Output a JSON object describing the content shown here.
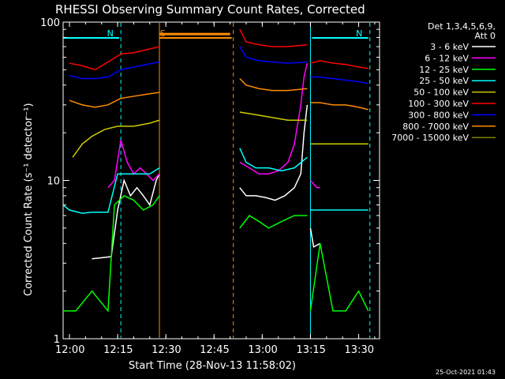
{
  "chart_data": {
    "type": "line",
    "title": "RHESSI Observing Summary Count Rates, Corrected",
    "xlabel": "Start Time (28-Nov-13 11:58:02)",
    "ylabel": "Corrected Count Rate (s⁻¹ detector⁻¹)",
    "y_scale": "log",
    "ylim": [
      1,
      100
    ],
    "xlim": [
      "11:58:02",
      "13:36:30"
    ],
    "x_ticks": [
      "12:00",
      "12:15",
      "12:30",
      "12:45",
      "13:00",
      "13:15",
      "13:30"
    ],
    "y_ticks": [
      "1",
      "10",
      "100"
    ],
    "legend": {
      "placement": "right",
      "header": [
        "Det 1,3,4,5,6,9,",
        "Att 0"
      ],
      "entries": [
        {
          "label": "3 - 6 keV",
          "color": "#ffffff"
        },
        {
          "label": "6 - 12 keV",
          "color": "#ff00ff"
        },
        {
          "label": "12 - 25 keV",
          "color": "#00ff00"
        },
        {
          "label": "25 - 50 keV",
          "color": "#00ffff"
        },
        {
          "label": "50 - 100 keV",
          "color": "#cccc00"
        },
        {
          "label": "100 - 300 keV",
          "color": "#ff0000"
        },
        {
          "label": "300 - 800 keV",
          "color": "#0000ff"
        },
        {
          "label": "800 - 7000 keV",
          "color": "#ff8c00"
        },
        {
          "label": "7000 - 15000 keV",
          "color": "#808000"
        }
      ]
    },
    "flags": [
      {
        "label": "N",
        "color": "#00ffff",
        "start": "11:58:02",
        "end": "12:15:30"
      },
      {
        "label": "N",
        "color": "#00ffff",
        "start": "13:15:30",
        "end": "13:33:00"
      },
      {
        "label": "S",
        "color": "#ff8c00",
        "start": "12:28:00",
        "end": "12:50:30"
      }
    ],
    "vlines": [
      {
        "time": "12:16:00",
        "color": "#00ffff",
        "style": "dashed"
      },
      {
        "time": "12:28:00",
        "color": "#ff8c00",
        "style": "solid"
      },
      {
        "time": "12:51:00",
        "color": "#ff8c00",
        "style": "dashed"
      },
      {
        "time": "13:15:00",
        "color": "#00ffff",
        "style": "solid"
      },
      {
        "time": "13:33:30",
        "color": "#00ffff",
        "style": "dashed"
      }
    ],
    "series": [
      {
        "name": "3 - 6 keV",
        "color": "#ffffff",
        "segments": [
          {
            "x": [
              "12:07",
              "12:13",
              "12:15",
              "12:17",
              "12:19",
              "12:21",
              "12:23",
              "12:25",
              "12:27",
              "12:28"
            ],
            "y": [
              3.2,
              3.3,
              6.5,
              10,
              8,
              9,
              8,
              7,
              10,
              11
            ]
          },
          {
            "x": [
              "12:53",
              "12:55",
              "12:58",
              "13:01",
              "13:04",
              "13:07",
              "13:10",
              "13:12",
              "13:13",
              "13:14"
            ],
            "y": [
              9,
              8,
              8,
              7.8,
              7.5,
              8,
              9,
              11,
              20,
              30
            ]
          },
          {
            "x": [
              "13:15",
              "13:16",
              "13:18"
            ],
            "y": [
              5,
              3.8,
              4
            ]
          }
        ]
      },
      {
        "name": "6 - 12 keV",
        "color": "#ff00ff",
        "segments": [
          {
            "x": [
              "12:12",
              "12:14",
              "12:16",
              "12:18",
              "12:20",
              "12:22",
              "12:24",
              "12:26",
              "12:28"
            ],
            "y": [
              9,
              10,
              18,
              13,
              11,
              12,
              11,
              10,
              11
            ]
          },
          {
            "x": [
              "12:53",
              "12:56",
              "12:59",
              "13:02",
              "13:05",
              "13:08",
              "13:10",
              "13:12",
              "13:13",
              "13:14"
            ],
            "y": [
              13,
              12,
              11,
              11,
              11.5,
              13,
              17,
              30,
              45,
              55
            ]
          },
          {
            "x": [
              "13:15",
              "13:17",
              "13:18"
            ],
            "y": [
              10,
              9,
              9
            ]
          }
        ]
      },
      {
        "name": "12 - 25 keV",
        "color": "#00ff00",
        "segments": [
          {
            "x": [
              "11:58",
              "12:02",
              "12:07",
              "12:12",
              "12:14",
              "12:17",
              "12:20",
              "12:23",
              "12:26",
              "12:28"
            ],
            "y": [
              1.5,
              1.5,
              2,
              1.5,
              7,
              8,
              7.5,
              6.5,
              7,
              8
            ]
          },
          {
            "x": [
              "12:53",
              "12:56",
              "12:59",
              "13:02",
              "13:06",
              "13:10",
              "13:14"
            ],
            "y": [
              5,
              6,
              5.5,
              5,
              5.5,
              6,
              6
            ]
          },
          {
            "x": [
              "13:15",
              "13:18",
              "13:22",
              "13:26",
              "13:30",
              "13:33"
            ],
            "y": [
              1.5,
              4,
              1.5,
              1.5,
              2,
              1.5
            ]
          }
        ]
      },
      {
        "name": "25 - 50 keV",
        "color": "#00ffff",
        "segments": [
          {
            "x": [
              "11:58",
              "12:00",
              "12:04",
              "12:07",
              "12:12",
              "12:15",
              "12:20",
              "12:25",
              "12:28"
            ],
            "y": [
              7,
              6.5,
              6.2,
              6.3,
              6.3,
              11,
              11,
              11,
              12
            ]
          },
          {
            "x": [
              "12:53",
              "12:55",
              "12:58",
              "13:02",
              "13:06",
              "13:10",
              "13:14"
            ],
            "y": [
              16,
              13,
              12,
              12,
              11.5,
              12,
              14
            ]
          },
          {
            "x": [
              "13:15",
              "13:18",
              "13:22",
              "13:26",
              "13:30",
              "13:33"
            ],
            "y": [
              6.5,
              6.5,
              6.5,
              6.5,
              6.5,
              6.5
            ]
          }
        ]
      },
      {
        "name": "50 - 100 keV",
        "color": "#cccc00",
        "segments": [
          {
            "x": [
              "12:01",
              "12:04",
              "12:07",
              "12:11",
              "12:15",
              "12:20",
              "12:25",
              "12:28"
            ],
            "y": [
              14,
              17,
              19,
              21,
              22,
              22,
              23,
              24
            ]
          },
          {
            "x": [
              "12:53",
              "12:58",
              "13:03",
              "13:08",
              "13:14"
            ],
            "y": [
              27,
              26,
              25,
              24,
              24
            ]
          },
          {
            "x": [
              "13:15",
              "13:18",
              "13:22",
              "13:26",
              "13:30",
              "13:33"
            ],
            "y": [
              17,
              17,
              17,
              17,
              17,
              17
            ]
          }
        ]
      },
      {
        "name": "100 - 300 keV",
        "color": "#ff0000",
        "segments": [
          {
            "x": [
              "12:00",
              "12:04",
              "12:08",
              "12:12",
              "12:16",
              "12:20",
              "12:24",
              "12:28"
            ],
            "y": [
              55,
              53,
              50,
              56,
              63,
              64,
              67,
              70
            ]
          },
          {
            "x": [
              "12:53",
              "12:55",
              "12:59",
              "13:03",
              "13:08",
              "13:14"
            ],
            "y": [
              90,
              75,
              72,
              70,
              70,
              72
            ]
          },
          {
            "x": [
              "13:15",
              "13:18",
              "13:22",
              "13:26",
              "13:30",
              "13:33"
            ],
            "y": [
              55,
              57,
              55,
              54,
              52,
              51
            ]
          }
        ]
      },
      {
        "name": "300 - 800 keV",
        "color": "#0000ff",
        "segments": [
          {
            "x": [
              "12:00",
              "12:04",
              "12:08",
              "12:12",
              "12:16",
              "12:20",
              "12:24",
              "12:28"
            ],
            "y": [
              46,
              44,
              44,
              45,
              50,
              52,
              54,
              56
            ]
          },
          {
            "x": [
              "12:53",
              "12:55",
              "12:59",
              "13:03",
              "13:08",
              "13:14"
            ],
            "y": [
              70,
              60,
              57,
              56,
              55,
              56
            ]
          },
          {
            "x": [
              "13:15",
              "13:18",
              "13:22",
              "13:26",
              "13:30",
              "13:33"
            ],
            "y": [
              45,
              45,
              44,
              43,
              42,
              41
            ]
          }
        ]
      },
      {
        "name": "800 - 7000 keV",
        "color": "#ff8c00",
        "segments": [
          {
            "x": [
              "12:00",
              "12:04",
              "12:08",
              "12:12",
              "12:16",
              "12:20",
              "12:24",
              "12:28"
            ],
            "y": [
              32,
              30,
              29,
              30,
              33,
              34,
              35,
              36
            ]
          },
          {
            "x": [
              "12:53",
              "12:55",
              "12:59",
              "13:03",
              "13:08",
              "13:14"
            ],
            "y": [
              44,
              40,
              38,
              37,
              37,
              38
            ]
          },
          {
            "x": [
              "13:15",
              "13:18",
              "13:22",
              "13:26",
              "13:30",
              "13:33"
            ],
            "y": [
              31,
              31,
              30,
              30,
              29,
              28
            ]
          }
        ]
      },
      {
        "name": "7000 - 15000 keV",
        "color": "#808000",
        "segments": []
      }
    ],
    "saa_flat": {
      "color": "#ff8c00",
      "start": "12:28",
      "end": "12:50",
      "y": 84
    },
    "footer": "25-Oct-2021 01:43"
  }
}
